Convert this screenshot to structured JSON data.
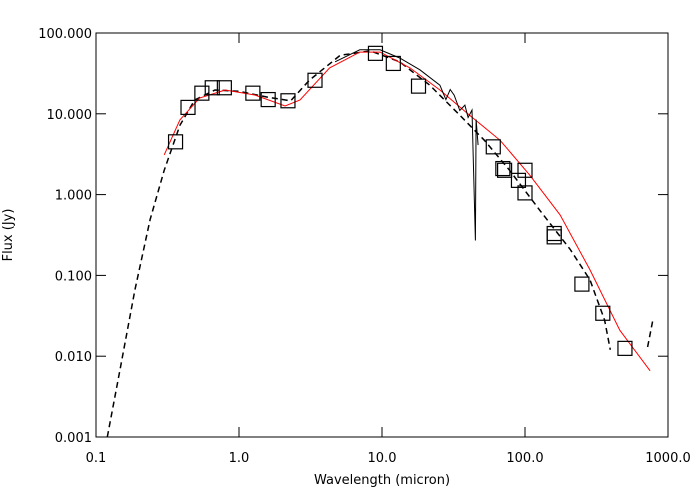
{
  "chart_data": {
    "type": "line",
    "x_label": "Wavelength (micron)",
    "y_label": "Flux (Jy)",
    "xlog": true,
    "ylog": true,
    "xlim": [
      0.1,
      1000
    ],
    "ylim": [
      0.001,
      100
    ],
    "xticks": [
      0.1,
      {
        "value": 1,
        "label": "1.0"
      },
      {
        "value": 10,
        "label": "10.0"
      },
      {
        "value": 100,
        "label": "100.0"
      },
      {
        "value": 1000,
        "label": "1000.0"
      }
    ],
    "yticks": [
      {
        "value": 0.001,
        "label": "0.001"
      },
      {
        "value": 0.01,
        "label": "0.010"
      },
      {
        "value": 0.1,
        "label": "0.100"
      },
      {
        "value": 1,
        "label": "1.000"
      },
      {
        "value": 10,
        "label": "10.000"
      },
      {
        "value": 100,
        "label": "100.000"
      }
    ],
    "series": [
      {
        "color": "#000000",
        "dash": true,
        "x": [
          0.12,
          0.147,
          0.187,
          0.239,
          0.3,
          0.386,
          0.49,
          0.68,
          1.0,
          1.6,
          2.3,
          3.1,
          5.1,
          8.3,
          13.3,
          21.6,
          35,
          52,
          78,
          127,
          207,
          285,
          360,
          395,
          null,
          720,
          780
        ],
        "values": [
          0.001,
          0.0067,
          0.066,
          0.49,
          2.0,
          7.2,
          14.8,
          19.7,
          19,
          16,
          14.5,
          26,
          53,
          60,
          44,
          22.6,
          9.6,
          4.7,
          2.0,
          0.64,
          0.21,
          0.088,
          0.028,
          0.012,
          null,
          0.013,
          0.027
        ]
      },
      {
        "color": "#ff0000",
        "x": [
          0.3,
          0.386,
          0.53,
          0.8,
          1.29,
          2.1,
          2.67,
          4.3,
          7.0,
          9.7,
          15.7,
          25.4,
          41,
          67,
          108,
          176,
          285,
          460,
          750
        ],
        "values": [
          3.1,
          8.4,
          15.7,
          19.7,
          17.1,
          12.5,
          14.8,
          37,
          58,
          58,
          37,
          19.7,
          9.6,
          4.7,
          1.74,
          0.56,
          0.117,
          0.021,
          0.0066
        ]
      },
      {
        "color": "#000000",
        "x": [
          4.7,
          7.0,
          9.7,
          13.3,
          18.4,
          25.4,
          28,
          30,
          32,
          35,
          38,
          40,
          42.6,
          45,
          45.5,
          47
        ],
        "values": [
          44,
          62,
          62,
          49,
          35,
          22.6,
          15,
          20,
          17,
          11,
          12.8,
          9,
          11.1,
          0.27,
          8.5,
          4.1
        ]
      },
      {
        "color": "#000000",
        "marker": "square",
        "x": [
          0.36,
          0.44,
          0.55,
          0.65,
          0.79,
          1.25,
          1.6,
          2.2,
          3.4,
          9,
          12,
          18,
          60,
          70,
          72,
          90,
          100,
          100,
          160,
          160,
          250,
          350,
          500
        ],
        "values": [
          4.5,
          12,
          18,
          21,
          21,
          18,
          15,
          14.5,
          26,
          56,
          42,
          22,
          3.9,
          2.1,
          2.0,
          1.5,
          2.0,
          1.05,
          0.33,
          0.3,
          0.078,
          0.034,
          0.0125
        ]
      }
    ]
  }
}
